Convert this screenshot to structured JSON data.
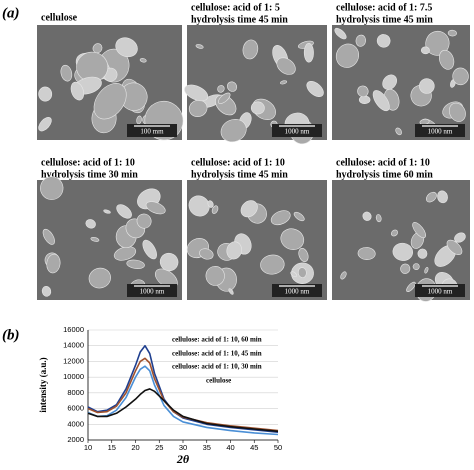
{
  "panel_a": {
    "label": "(a)",
    "images": [
      {
        "caption": [
          "cellulose"
        ],
        "scale_bar": "100 mm"
      },
      {
        "caption": [
          "cellulose: acid of 1: 5",
          "hydrolysis time 45 min"
        ],
        "scale_bar": "1000 nm"
      },
      {
        "caption": [
          "cellulose: acid of 1: 7.5",
          "hydrolysis time 45 min"
        ],
        "scale_bar": "1000 nm"
      },
      {
        "caption": [
          "cellulose: acid of 1: 10",
          "hydrolysis time 30 min"
        ],
        "scale_bar": "1000 nm"
      },
      {
        "caption": [
          "cellulose: acid of 1: 10",
          "hydrolysis time 45 min"
        ],
        "scale_bar": "1000 nm"
      },
      {
        "caption": [
          "cellulose: acid of 1: 10",
          "hydrolysis time 60 min"
        ],
        "scale_bar": "1000 nm"
      }
    ]
  },
  "panel_b_label": "(b)",
  "chart_data": {
    "type": "line",
    "x_label": "2θ",
    "y_label": "intensity (a.u.)",
    "x": [
      10,
      12,
      14,
      16,
      18,
      20,
      21,
      22,
      23,
      24,
      26,
      28,
      30,
      35,
      40,
      45,
      50
    ],
    "series": [
      {
        "name": "cellulose: acid of 1: 10, 60 min",
        "color": "#1f3f8f",
        "values": [
          6200,
          5600,
          5800,
          6500,
          8500,
          11500,
          13200,
          14000,
          13000,
          10500,
          7200,
          5600,
          4800,
          4000,
          3600,
          3300,
          3000
        ]
      },
      {
        "name": "cellulose: acid of 1: 10, 45 min",
        "color": "#a0522d",
        "values": [
          6000,
          5500,
          5600,
          6300,
          8000,
          10800,
          12000,
          12400,
          11800,
          9800,
          7000,
          5600,
          4900,
          4200,
          3800,
          3500,
          3200
        ]
      },
      {
        "name": "cellulose: acid of 1: 10, 30 min",
        "color": "#4a8fd6",
        "values": [
          5500,
          5000,
          5100,
          5800,
          7400,
          10000,
          11000,
          11400,
          10800,
          9000,
          6400,
          5000,
          4300,
          3600,
          3200,
          2900,
          2700
        ]
      },
      {
        "name": "cellulose",
        "color": "#111111",
        "values": [
          5400,
          5000,
          5000,
          5400,
          6200,
          7200,
          7800,
          8300,
          8500,
          8200,
          7000,
          5800,
          5000,
          4100,
          3700,
          3400,
          3100
        ]
      }
    ],
    "xlim": [
      10,
      50
    ],
    "xticks": [
      10,
      15,
      20,
      25,
      30,
      35,
      40,
      45,
      50
    ],
    "ylim": [
      2000,
      16000
    ],
    "yticks": [
      2000,
      4000,
      6000,
      8000,
      10000,
      12000,
      14000,
      16000
    ],
    "grid": true
  }
}
